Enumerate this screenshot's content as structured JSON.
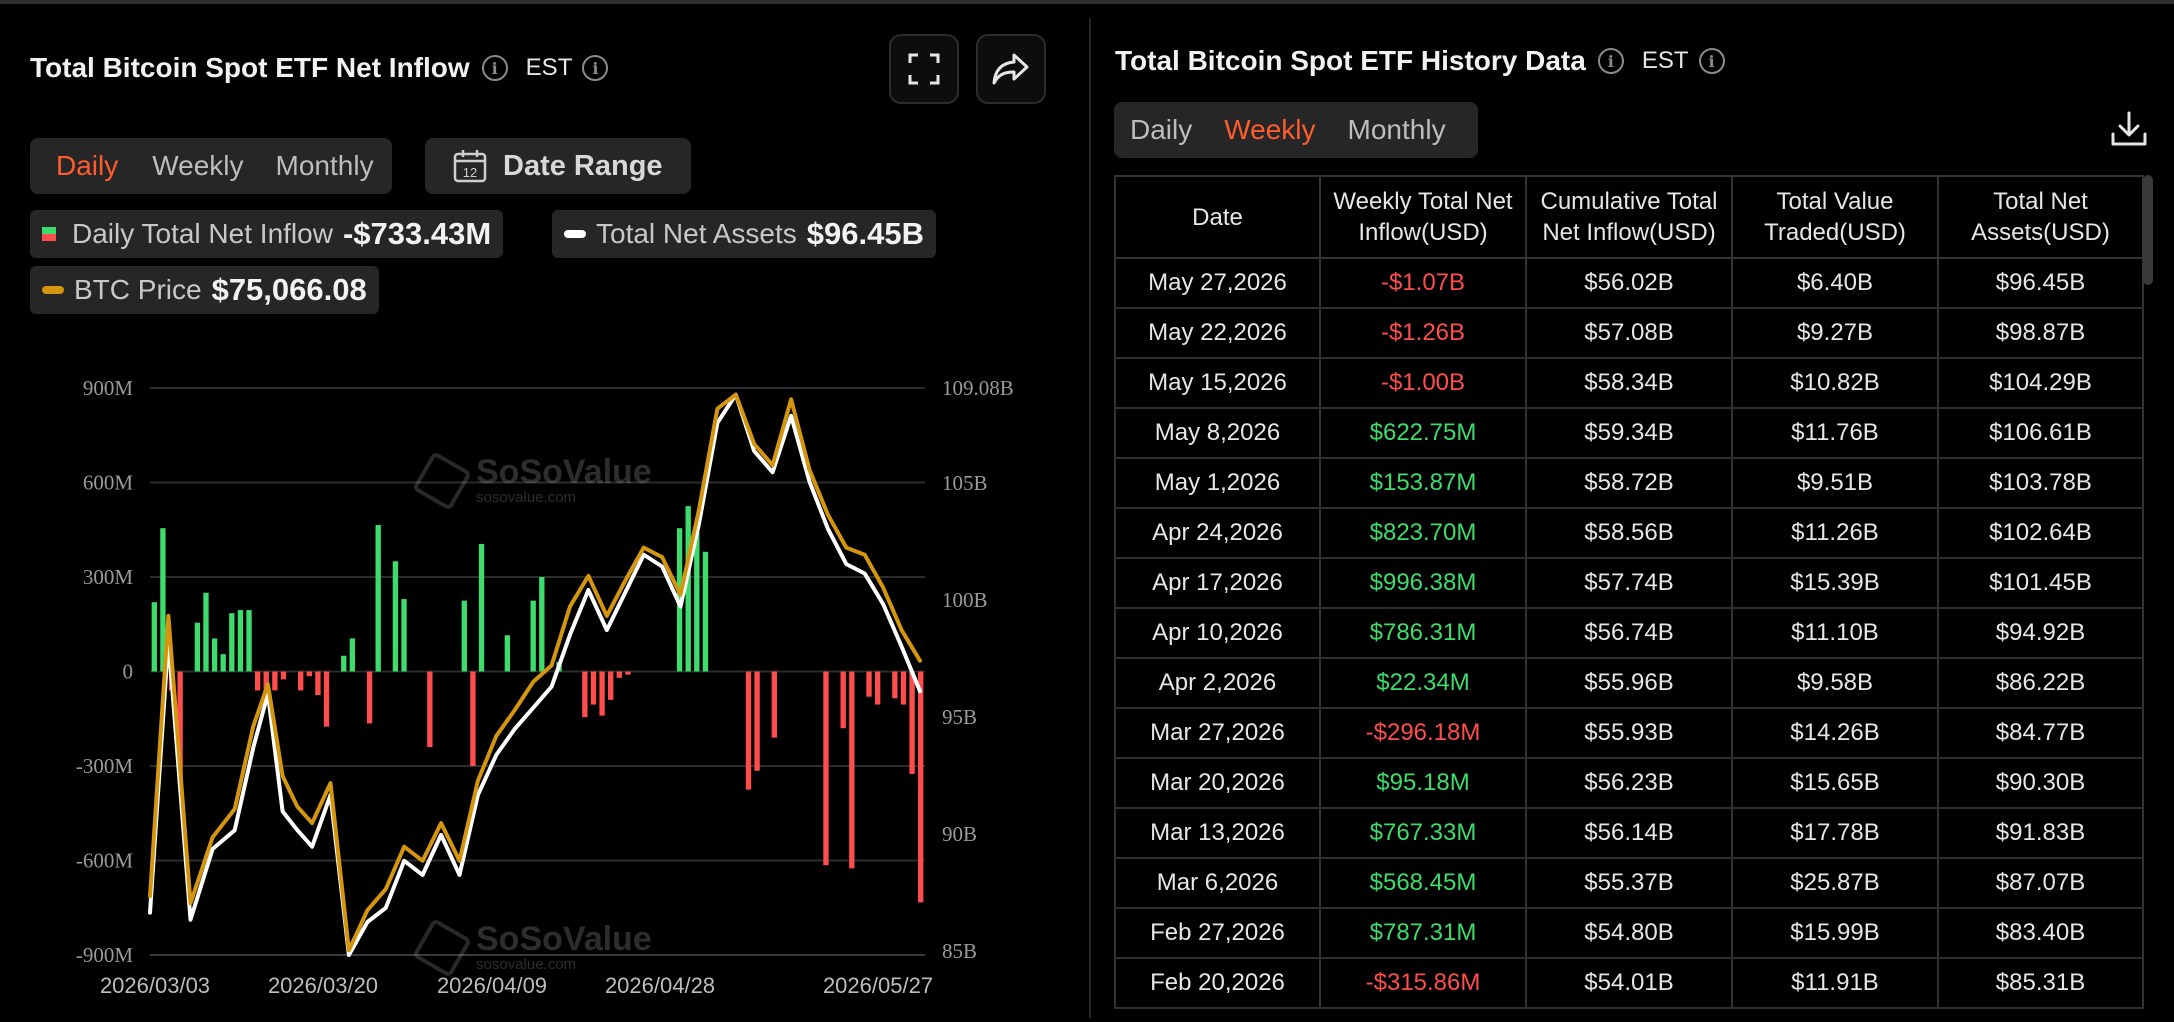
{
  "left": {
    "title": "Total Bitcoin Spot ETF Net Inflow",
    "timezone": "EST",
    "tabs": [
      {
        "label": "Daily",
        "active": true
      },
      {
        "label": "Weekly",
        "active": false
      },
      {
        "label": "Monthly",
        "active": false
      }
    ],
    "date_range_label": "Date Range",
    "date_range_icon_text": "12",
    "legend": {
      "inflow_label": "Daily Total Net Inflow",
      "inflow_value": "-$733.43M",
      "assets_label": "Total Net Assets",
      "assets_value": "$96.45B",
      "btc_label": "BTC Price",
      "btc_value": "$75,066.08"
    },
    "watermark": {
      "name": "SoSoValue",
      "url": "sosovalue.com"
    }
  },
  "chart_data": {
    "type": "bar",
    "colors": {
      "positive": "#3ddc6c",
      "negative": "#ff4d4d",
      "assets_line": "#ffffff",
      "btc_line": "#d4960e"
    },
    "y_left": {
      "ticks": [
        "900M",
        "600M",
        "300M",
        "0",
        "-300M",
        "-600M",
        "-900M"
      ],
      "range": [
        -900,
        900
      ],
      "unit": "M"
    },
    "y_right": {
      "ticks": [
        "109.08B",
        "105B",
        "100B",
        "95B",
        "90B",
        "85B"
      ],
      "range": [
        85,
        109.08
      ],
      "unit": "B"
    },
    "x_ticks": [
      "2026/03/03",
      "2026/03/20",
      "2026/04/09",
      "2026/04/28",
      "2026/05/27"
    ],
    "series": [
      {
        "name": "Daily Total Net Inflow",
        "type": "bar",
        "values": [
          220,
          455,
          -60,
          -355,
          0,
          155,
          250,
          105,
          55,
          185,
          195,
          195,
          -60,
          -75,
          -60,
          -25,
          0,
          -60,
          -15,
          -75,
          -175,
          0,
          50,
          105,
          0,
          -165,
          465,
          0,
          350,
          230,
          0,
          0,
          -240,
          0,
          0,
          0,
          225,
          -300,
          405,
          0,
          0,
          115,
          0,
          0,
          225,
          300,
          0,
          30,
          0,
          0,
          -145,
          -105,
          -140,
          -90,
          -20,
          -10,
          0,
          0,
          0,
          0,
          0,
          455,
          525,
          460,
          380,
          0,
          0,
          0,
          0,
          -375,
          -315,
          0,
          -210,
          0,
          0,
          0,
          0,
          0,
          -615,
          0,
          -180,
          -625,
          0,
          -80,
          -105,
          0,
          -85,
          -105,
          -325,
          -733
        ]
      },
      {
        "name": "Total Net Assets",
        "type": "line",
        "points": [
          [
            0,
            86.8
          ],
          [
            5,
            98.4
          ],
          [
            11,
            86.5
          ],
          [
            17,
            89.5
          ],
          [
            23,
            90.3
          ],
          [
            28,
            93.8
          ],
          [
            32,
            96.1
          ],
          [
            36,
            91.1
          ],
          [
            40,
            90.3
          ],
          [
            44,
            89.6
          ],
          [
            49,
            91.8
          ],
          [
            54,
            85.0
          ],
          [
            59,
            86.4
          ],
          [
            64,
            87.0
          ],
          [
            69,
            89.0
          ],
          [
            74,
            88.4
          ],
          [
            79,
            90.1
          ],
          [
            84,
            88.4
          ],
          [
            89,
            91.8
          ],
          [
            94,
            93.5
          ],
          [
            99,
            94.6
          ],
          [
            104,
            95.5
          ],
          [
            109,
            96.4
          ],
          [
            114,
            98.6
          ],
          [
            119,
            100.5
          ],
          [
            124,
            98.8
          ],
          [
            129,
            100.4
          ],
          [
            134,
            102.0
          ],
          [
            139,
            101.5
          ],
          [
            144,
            99.8
          ],
          [
            149,
            103.3
          ],
          [
            154,
            107.6
          ],
          [
            159,
            108.8
          ],
          [
            164,
            106.4
          ],
          [
            169,
            105.5
          ],
          [
            174,
            107.9
          ],
          [
            179,
            105.1
          ],
          [
            184,
            103.1
          ],
          [
            189,
            101.6
          ],
          [
            194,
            101.2
          ],
          [
            199,
            99.9
          ],
          [
            204,
            98.1
          ],
          [
            209,
            96.2
          ]
        ],
        "x_max": 209
      },
      {
        "name": "BTC Price",
        "type": "line",
        "points": [
          [
            0,
            87.5
          ],
          [
            5,
            99.4
          ],
          [
            11,
            87.2
          ],
          [
            17,
            90.0
          ],
          [
            23,
            91.2
          ],
          [
            28,
            94.7
          ],
          [
            32,
            96.5
          ],
          [
            36,
            92.6
          ],
          [
            40,
            91.3
          ],
          [
            44,
            90.6
          ],
          [
            49,
            92.3
          ],
          [
            54,
            85.2
          ],
          [
            59,
            86.9
          ],
          [
            64,
            87.8
          ],
          [
            69,
            89.6
          ],
          [
            74,
            89.0
          ],
          [
            79,
            90.6
          ],
          [
            84,
            89.0
          ],
          [
            89,
            92.4
          ],
          [
            94,
            94.3
          ],
          [
            99,
            95.4
          ],
          [
            104,
            96.6
          ],
          [
            109,
            97.3
          ],
          [
            114,
            99.8
          ],
          [
            119,
            101.1
          ],
          [
            124,
            99.4
          ],
          [
            129,
            100.9
          ],
          [
            134,
            102.3
          ],
          [
            139,
            101.9
          ],
          [
            144,
            100.3
          ],
          [
            149,
            103.9
          ],
          [
            154,
            108.2
          ],
          [
            159,
            108.8
          ],
          [
            164,
            106.7
          ],
          [
            169,
            105.8
          ],
          [
            174,
            108.6
          ],
          [
            179,
            105.6
          ],
          [
            184,
            103.7
          ],
          [
            189,
            102.3
          ],
          [
            194,
            102.0
          ],
          [
            199,
            100.6
          ],
          [
            204,
            98.8
          ],
          [
            209,
            97.5
          ]
        ],
        "x_max": 209
      }
    ]
  },
  "right": {
    "title": "Total Bitcoin Spot ETF History Data",
    "timezone": "EST",
    "tabs": [
      {
        "label": "Daily",
        "active": false
      },
      {
        "label": "Weekly",
        "active": true
      },
      {
        "label": "Monthly",
        "active": false
      }
    ],
    "columns": [
      "Date",
      "Weekly Total Net Inflow(USD)",
      "Cumulative Total Net Inflow(USD)",
      "Total Value Traded(USD)",
      "Total Net Assets(USD)"
    ],
    "rows": [
      {
        "date": "May 27,2026",
        "inflow": "-$1.07B",
        "sign": "neg",
        "cumulative": "$56.02B",
        "traded": "$6.40B",
        "assets": "$96.45B"
      },
      {
        "date": "May 22,2026",
        "inflow": "-$1.26B",
        "sign": "neg",
        "cumulative": "$57.08B",
        "traded": "$9.27B",
        "assets": "$98.87B"
      },
      {
        "date": "May 15,2026",
        "inflow": "-$1.00B",
        "sign": "neg",
        "cumulative": "$58.34B",
        "traded": "$10.82B",
        "assets": "$104.29B"
      },
      {
        "date": "May 8,2026",
        "inflow": "$622.75M",
        "sign": "pos",
        "cumulative": "$59.34B",
        "traded": "$11.76B",
        "assets": "$106.61B"
      },
      {
        "date": "May 1,2026",
        "inflow": "$153.87M",
        "sign": "pos",
        "cumulative": "$58.72B",
        "traded": "$9.51B",
        "assets": "$103.78B"
      },
      {
        "date": "Apr 24,2026",
        "inflow": "$823.70M",
        "sign": "pos",
        "cumulative": "$58.56B",
        "traded": "$11.26B",
        "assets": "$102.64B"
      },
      {
        "date": "Apr 17,2026",
        "inflow": "$996.38M",
        "sign": "pos",
        "cumulative": "$57.74B",
        "traded": "$15.39B",
        "assets": "$101.45B"
      },
      {
        "date": "Apr 10,2026",
        "inflow": "$786.31M",
        "sign": "pos",
        "cumulative": "$56.74B",
        "traded": "$11.10B",
        "assets": "$94.92B"
      },
      {
        "date": "Apr 2,2026",
        "inflow": "$22.34M",
        "sign": "pos",
        "cumulative": "$55.96B",
        "traded": "$9.58B",
        "assets": "$86.22B"
      },
      {
        "date": "Mar 27,2026",
        "inflow": "-$296.18M",
        "sign": "neg",
        "cumulative": "$55.93B",
        "traded": "$14.26B",
        "assets": "$84.77B"
      },
      {
        "date": "Mar 20,2026",
        "inflow": "$95.18M",
        "sign": "pos",
        "cumulative": "$56.23B",
        "traded": "$15.65B",
        "assets": "$90.30B"
      },
      {
        "date": "Mar 13,2026",
        "inflow": "$767.33M",
        "sign": "pos",
        "cumulative": "$56.14B",
        "traded": "$17.78B",
        "assets": "$91.83B"
      },
      {
        "date": "Mar 6,2026",
        "inflow": "$568.45M",
        "sign": "pos",
        "cumulative": "$55.37B",
        "traded": "$25.87B",
        "assets": "$87.07B"
      },
      {
        "date": "Feb 27,2026",
        "inflow": "$787.31M",
        "sign": "pos",
        "cumulative": "$54.80B",
        "traded": "$15.99B",
        "assets": "$83.40B"
      },
      {
        "date": "Feb 20,2026",
        "inflow": "-$315.86M",
        "sign": "neg",
        "cumulative": "$54.01B",
        "traded": "$11.91B",
        "assets": "$85.31B"
      }
    ]
  }
}
